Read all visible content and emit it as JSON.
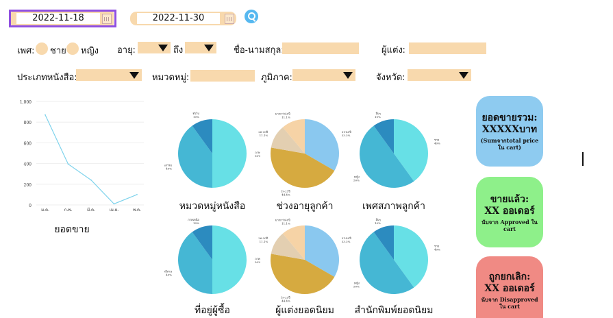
{
  "filters": {
    "start_date": "2022-11-18",
    "end_date": "2022-11-30",
    "search_icon": "search-icon",
    "gender_label": "เพศ:",
    "gender_options": [
      "ชาย",
      "หญิง"
    ],
    "age_label": "อายุ:",
    "age_to_label": "ถึง",
    "name_label": "ชื่อ-นามสกุล:",
    "author_label": "ผู้แต่ง:",
    "book_type_label": "ประเภทหนังสือ:",
    "category_label": "หมวดหมู่:",
    "region_label": "ภูมิภาค:",
    "province_label": "จังหวัด:"
  },
  "line_chart": {
    "title": "ยอดขาย",
    "chart_data": {
      "type": "line",
      "categories": [
        "ม.ค.",
        "ก.พ.",
        "มี.ค.",
        "เม.ย.",
        "พ.ค."
      ],
      "values": [
        870,
        395,
        240,
        10,
        100
      ],
      "yticks": [
        "1,000",
        "800",
        "600",
        "400",
        "200",
        "0"
      ],
      "ylim": [
        0,
        1000
      ],
      "color": "#7fd3ec"
    }
  },
  "pies": [
    {
      "title": "หมวดหมู่หนังสือ",
      "slices": [
        {
          "label": "ภาษาอังกฤษ",
          "pct": "50%",
          "value": 50,
          "color": "#67e0e6"
        },
        {
          "label": "วรรณกรรม",
          "pct": "40%",
          "value": 40,
          "color": "#45b7d4"
        },
        {
          "label": "ทั่วไป",
          "pct": "10%",
          "value": 10,
          "color": "#2c8bbf"
        }
      ]
    },
    {
      "title": "ช่วงอายุลูกค้า",
      "slices": [
        {
          "label": "31-40ปี",
          "pct": "33.3%",
          "value": 33.3,
          "color": "#8ac8ef"
        },
        {
          "label": "19-25ปี",
          "pct": "44.4%",
          "value": 44.4,
          "color": "#d6aa40"
        },
        {
          "label": "26-30ปี",
          "pct": "11.1%",
          "value": 11.1,
          "color": "#e3cfb1"
        },
        {
          "label": "มากกว่า40ปี",
          "pct": "11.1%",
          "value": 11.1,
          "color": "#f6d3a6"
        }
      ]
    },
    {
      "title": "เพศสภาพลูกค้า",
      "slices": [
        {
          "label": "ชาย",
          "pct": "40%",
          "value": 40,
          "color": "#67e0e6"
        },
        {
          "label": "หญิง",
          "pct": "50%",
          "value": 50,
          "color": "#45b7d4"
        },
        {
          "label": "อื่นๆ",
          "pct": "10%",
          "value": 10,
          "color": "#2c8bbf"
        }
      ]
    },
    {
      "title": "ที่อยู่ผู้ซื้อ",
      "slices": [
        {
          "label": "ภาคกลาง",
          "pct": "50%",
          "value": 50,
          "color": "#67e0e6"
        },
        {
          "label": "ภาคอีสาน",
          "pct": "40%",
          "value": 40,
          "color": "#45b7d4"
        },
        {
          "label": "ภาคเหนือ",
          "pct": "10%",
          "value": 10,
          "color": "#2c8bbf"
        }
      ]
    },
    {
      "title": "ผู้แต่งยอดนิยม",
      "slices": [
        {
          "label": "31-40ปี",
          "pct": "33.3%",
          "value": 33.3,
          "color": "#8ac8ef"
        },
        {
          "label": "19-25ปี",
          "pct": "44.4%",
          "value": 44.4,
          "color": "#d6aa40"
        },
        {
          "label": "26-30ปี",
          "pct": "11.1%",
          "value": 11.1,
          "color": "#e3cfb1"
        },
        {
          "label": "มากกว่า40ปี",
          "pct": "11.1%",
          "value": 11.1,
          "color": "#f6d3a6"
        }
      ]
    },
    {
      "title": "สำนักพิมพ์ยอดนิยม",
      "slices": [
        {
          "label": "ชาย",
          "pct": "40%",
          "value": 40,
          "color": "#67e0e6"
        },
        {
          "label": "หญิง",
          "pct": "50%",
          "value": 50,
          "color": "#45b7d4"
        },
        {
          "label": "อื่นๆ",
          "pct": "10%",
          "value": 10,
          "color": "#2c8bbf"
        }
      ]
    }
  ],
  "kpis": [
    {
      "title": "ยอดขายรวม:",
      "value": "XXXXXบาท",
      "note": "(Sumจากtotal price ใน cart)",
      "color": "#8ecbf0"
    },
    {
      "title": "ขายแล้ว:",
      "value": "XX ออเดอร์",
      "note": "นับจาก Approved ใน cart",
      "color": "#8ef08a"
    },
    {
      "title": "ถูกยกเลิก:",
      "value": "XX ออเดอร์",
      "note": "นับจาก Disapproved ใน cart",
      "color": "#f08a84"
    }
  ]
}
